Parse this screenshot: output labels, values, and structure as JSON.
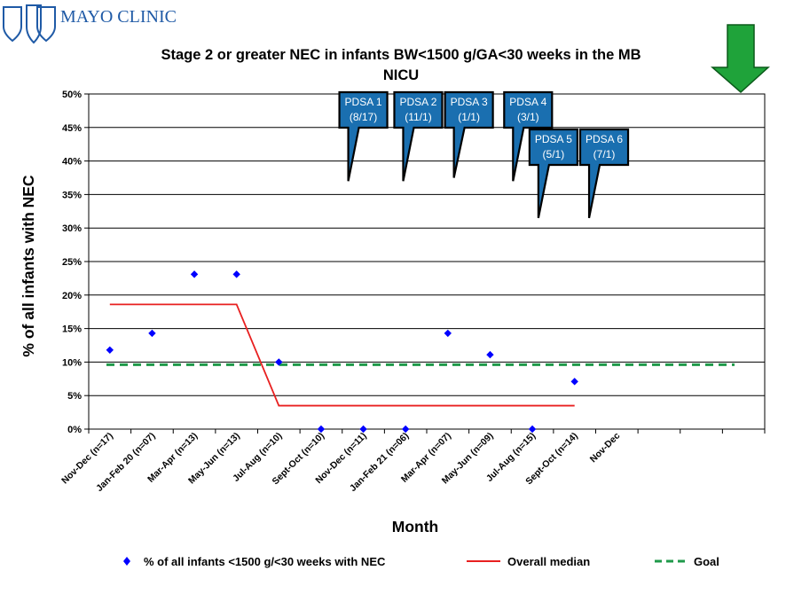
{
  "brand": {
    "name": "MAYO CLINIC",
    "logo_icon": "mayo-shields-logo-icon",
    "color": "#1f5aa6"
  },
  "chart_data": {
    "type": "scatter",
    "title": "Stage 2 or greater NEC in infants BW<1500 g/GA<30 weeks in the MB NICU",
    "title_lines": [
      "Stage 2 or greater NEC in infants BW<1500 g/GA<30 weeks in the MB",
      "NICU"
    ],
    "xlabel": "Month",
    "ylabel": "% of all infants with NEC",
    "ylim": [
      0,
      50
    ],
    "yticks": [
      "0%",
      "5%",
      "10%",
      "15%",
      "20%",
      "25%",
      "30%",
      "35%",
      "40%",
      "45%",
      "50%"
    ],
    "grid": true,
    "categories": [
      "Nov-Dec (n=17)",
      "Jan-Feb 20 (n=07)",
      "Mar-Apr (n=13)",
      "May-Jun (n=13)",
      "Jul-Aug (n=10)",
      "Sept-Oct (n=10)",
      "Nov-Dec (n=11)",
      "Jan-Feb 21 (n=06)",
      "Mar-Apr (n=07)",
      "May-Jun (n=09)",
      "Jul-Aug (n=15)",
      "Sept-Oct (n=14)",
      "Nov-Dec",
      "",
      "",
      ""
    ],
    "series": [
      {
        "name": "% of all infants <1500 g/<30 weeks with NEC",
        "marker": "diamond",
        "color": "#0000ff",
        "values": [
          11.8,
          14.3,
          23.1,
          23.1,
          10.0,
          0,
          0,
          0,
          14.3,
          11.1,
          0,
          7.1
        ]
      },
      {
        "name": "Overall median",
        "color": "#e82020",
        "points": [
          [
            0,
            18.6
          ],
          [
            3,
            18.6
          ],
          [
            4,
            3.5
          ],
          [
            11,
            3.5
          ]
        ]
      },
      {
        "name": "Goal",
        "color": "#1f9a4a",
        "dashed": true,
        "y": 9.6
      }
    ],
    "annotations": [
      {
        "line1": "PDSA 1",
        "line2": "(8/17)"
      },
      {
        "line1": "PDSA 2",
        "line2": "(11/1)"
      },
      {
        "line1": "PDSA 3",
        "line2": "(1/1)"
      },
      {
        "line1": "PDSA 4",
        "line2": "(3/1)"
      },
      {
        "line1": "PDSA 5",
        "line2": "(5/1)"
      },
      {
        "line1": "PDSA 6",
        "line2": "(7/1)"
      }
    ],
    "legend_position": "bottom",
    "indicator": {
      "icon": "green-down-arrow-icon",
      "color": "#1fa33a"
    }
  }
}
